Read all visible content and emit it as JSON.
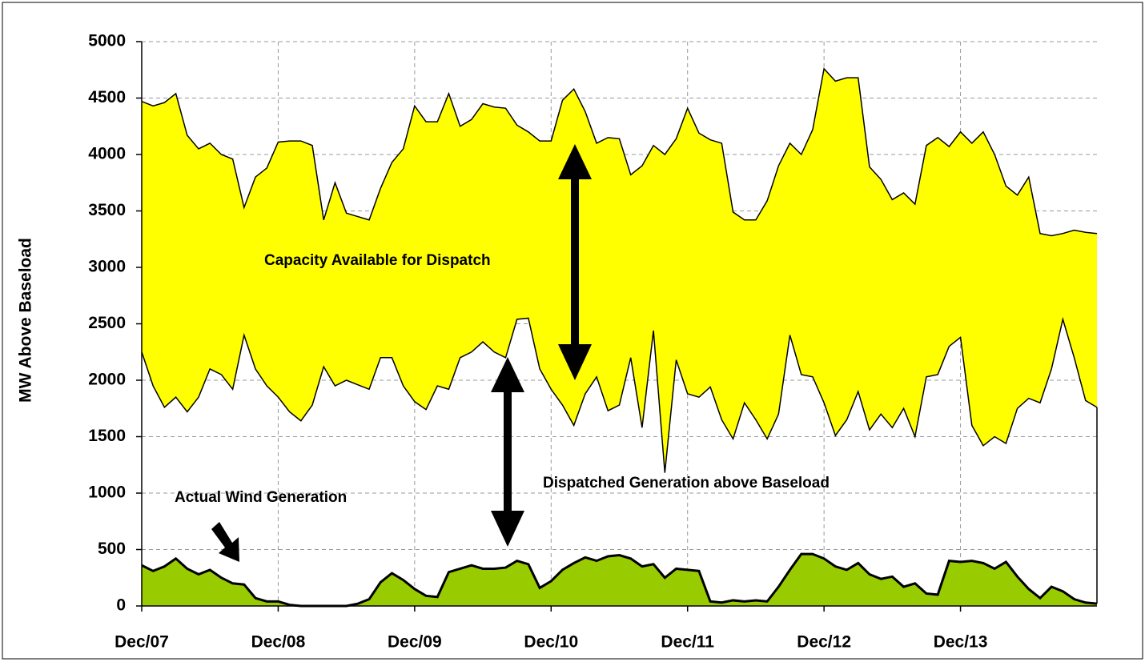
{
  "chart_data": {
    "type": "area",
    "ylabel": "MW Above Baseload",
    "categories": [
      "Dec/07",
      null,
      null,
      null,
      null,
      null,
      null,
      null,
      null,
      null,
      null,
      null,
      "Dec/08",
      null,
      null,
      null,
      null,
      null,
      null,
      null,
      null,
      null,
      null,
      null,
      "Dec/09",
      null,
      null,
      null,
      null,
      null,
      null,
      null,
      null,
      null,
      null,
      null,
      "Dec/10",
      null,
      null,
      null,
      null,
      null,
      null,
      null,
      null,
      null,
      null,
      null,
      "Dec/11",
      null,
      null,
      null,
      null,
      null,
      null,
      null,
      null,
      null,
      null,
      null,
      "Dec/12",
      null,
      null,
      null,
      null,
      null,
      null,
      null,
      null,
      null,
      null,
      null,
      "Dec/13",
      null,
      null,
      null,
      null,
      null,
      null,
      null,
      null,
      null,
      null,
      null,
      null
    ],
    "series": [
      {
        "color": "#000000",
        "fill": "#ffff00",
        "values": [
          4470,
          4430,
          4460,
          4540,
          4170,
          4050,
          4100,
          4000,
          3960,
          3530,
          3800,
          3880,
          4110,
          4120,
          4120,
          4080,
          3420,
          3750,
          3480,
          3450,
          3420,
          3700,
          3930,
          4050,
          4430,
          4290,
          4290,
          4540,
          4250,
          4310,
          4450,
          4420,
          4410,
          4260,
          4200,
          4120,
          4120,
          4480,
          4580,
          4380,
          4100,
          4150,
          4140,
          3820,
          3900,
          4080,
          4000,
          4140,
          4410,
          4190,
          4130,
          4100,
          3490,
          3420,
          3420,
          3590,
          3900,
          4100,
          4000,
          4220,
          4760,
          4650,
          4680,
          4680,
          3890,
          3780,
          3600,
          3660,
          3560,
          4080,
          4150,
          4070,
          4200,
          4100,
          4200,
          4000,
          3720,
          3640,
          3800,
          3300,
          3280,
          3300,
          3330,
          3310,
          3300
        ]
      },
      {
        "color": "#000000",
        "fill": "#ffffff",
        "values": [
          2250,
          1950,
          1760,
          1850,
          1720,
          1850,
          2100,
          2050,
          1920,
          2400,
          2100,
          1950,
          1850,
          1720,
          1640,
          1780,
          2120,
          1950,
          2000,
          1960,
          1920,
          2200,
          2200,
          1950,
          1810,
          1740,
          1950,
          1920,
          2200,
          2250,
          2340,
          2250,
          2200,
          2540,
          2550,
          2100,
          1920,
          1780,
          1600,
          1880,
          2030,
          1730,
          1780,
          2200,
          1580,
          2440,
          1180,
          2180,
          1880,
          1850,
          1940,
          1650,
          1480,
          1800,
          1650,
          1480,
          1700,
          2400,
          2050,
          2030,
          1800,
          1510,
          1650,
          1900,
          1560,
          1700,
          1580,
          1750,
          1500,
          2030,
          2050,
          2300,
          2380,
          1600,
          1420,
          1500,
          1440,
          1750,
          1840,
          1800,
          2100,
          2540,
          2200,
          1820,
          1760
        ]
      },
      {
        "color": "#000000",
        "fill": "#99cc00",
        "values": [
          360,
          310,
          350,
          420,
          330,
          280,
          320,
          250,
          200,
          190,
          70,
          40,
          40,
          10,
          0,
          0,
          0,
          0,
          0,
          20,
          60,
          210,
          290,
          230,
          150,
          90,
          80,
          300,
          330,
          360,
          330,
          330,
          340,
          400,
          370,
          160,
          220,
          320,
          380,
          430,
          400,
          440,
          450,
          420,
          350,
          370,
          250,
          330,
          320,
          310,
          40,
          30,
          50,
          40,
          50,
          40,
          170,
          320,
          460,
          460,
          420,
          350,
          320,
          380,
          280,
          240,
          260,
          170,
          200,
          110,
          100,
          400,
          390,
          400,
          380,
          330,
          390,
          260,
          150,
          70,
          170,
          130,
          60,
          30,
          20
        ]
      }
    ],
    "annotations": [
      "Capacity Available for Dispatch",
      "Dispatched Generation above Baseload",
      "Actual Wind Generation"
    ],
    "ylim": [
      0,
      5000
    ],
    "yticks": [
      0,
      500,
      1000,
      1500,
      2000,
      2500,
      3000,
      3500,
      4000,
      4500,
      5000
    ],
    "grid": true
  }
}
